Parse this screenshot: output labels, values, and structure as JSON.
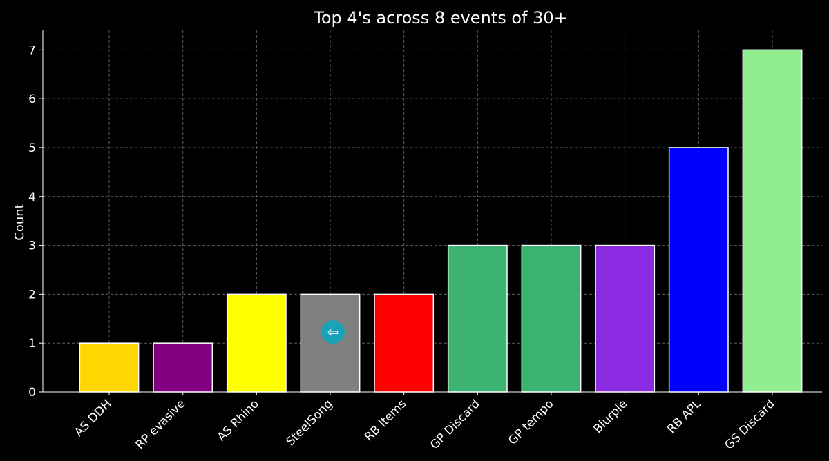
{
  "chart_data": {
    "type": "bar",
    "title": "Top 4's across 8 events of 30+",
    "xlabel": "",
    "ylabel": "Count",
    "categories": [
      "AS DDH",
      "RP evasive",
      "AS Rhino",
      "SteelSong",
      "RB Items",
      "GP Discard",
      "GP tempo",
      "Blurple",
      "RB APL",
      "GS Discard"
    ],
    "values": [
      1,
      1,
      2,
      2,
      2,
      3,
      3,
      3,
      5,
      7
    ],
    "colors": [
      "#ffd700",
      "#800080",
      "#ffff00",
      "#808080",
      "#ff0000",
      "#3cb371",
      "#3cb371",
      "#8a2be2",
      "#0000ff",
      "#90ee90"
    ],
    "ylim": [
      0,
      7.4
    ],
    "yticks": [
      0,
      1,
      2,
      3,
      4,
      5,
      6,
      7
    ],
    "grid": true,
    "background": "#000000",
    "text_color": "#ffffff"
  },
  "overlay": {
    "icon": "back-arrow-icon",
    "glyph": "⇦"
  }
}
